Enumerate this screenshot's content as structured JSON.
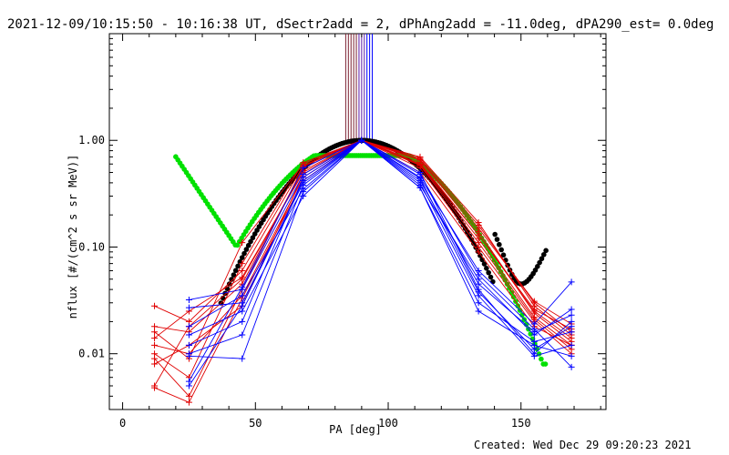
{
  "title": "2021-12-09/10:15:50 - 10:16:38 UT, dSectr2add = 2, dPhAng2add = -11.0deg, dPA290_est=  0.0deg",
  "footer": "Created: Wed Dec 29 09:20:23 2021",
  "chart_data": {
    "type": "scatter",
    "title": "2021-12-09/10:15:50 - 10:16:38 UT, dSectr2add = 2, dPhAng2add = -11.0deg, dPA290_est=  0.0deg",
    "xlabel": "PA [deg]",
    "ylabel": "nflux [#/(cm^2 s sr MeV)]",
    "xlim": [
      -5,
      182
    ],
    "ylim": [
      0.003,
      10
    ],
    "yscale": "log",
    "x_ticks": [
      0,
      50,
      100,
      150
    ],
    "x_tick_labels": [
      "0",
      "50",
      "100",
      "150"
    ],
    "y_ticks": [
      0.01,
      0.1,
      1.0
    ],
    "y_tick_labels": [
      "0.01",
      "0.10",
      "1.00"
    ],
    "vertical_lines": [
      {
        "color": "#7b2030",
        "x": [
          84,
          85,
          86,
          87,
          88
        ]
      },
      {
        "color": "#5a1aa8",
        "x": [
          89,
          90,
          91
        ]
      },
      {
        "color": "#0000ff",
        "x": [
          92,
          93,
          94
        ]
      }
    ],
    "series": [
      {
        "color": "#e00000",
        "marker": "plus",
        "x": [
          12,
          25,
          45,
          68,
          90,
          112,
          134,
          155,
          169
        ],
        "lines": [
          [
            0.028,
            0.02,
            0.06,
            0.58,
            1.0,
            0.68,
            0.16,
            0.03,
            0.016
          ],
          [
            0.018,
            0.016,
            0.045,
            0.55,
            1.0,
            0.62,
            0.13,
            0.025,
            0.014
          ],
          [
            0.016,
            0.009,
            0.11,
            0.6,
            1.0,
            0.66,
            0.15,
            0.031,
            0.019
          ],
          [
            0.014,
            0.025,
            0.052,
            0.5,
            1.0,
            0.59,
            0.12,
            0.022,
            0.012
          ],
          [
            0.012,
            0.01,
            0.035,
            0.45,
            1.0,
            0.55,
            0.1,
            0.02,
            0.01
          ],
          [
            0.01,
            0.006,
            0.07,
            0.62,
            1.0,
            0.7,
            0.17,
            0.028,
            0.015
          ],
          [
            0.009,
            0.004,
            0.04,
            0.57,
            1.0,
            0.65,
            0.14,
            0.024,
            0.013
          ],
          [
            0.008,
            0.012,
            0.028,
            0.48,
            1.0,
            0.58,
            0.11,
            0.021,
            0.011
          ],
          [
            0.005,
            0.018,
            0.05,
            0.52,
            1.0,
            0.6,
            0.13,
            0.026,
            0.017
          ],
          [
            0.0048,
            0.0035,
            0.033,
            0.42,
            1.0,
            0.5,
            0.09,
            0.018,
            0.012
          ]
        ]
      },
      {
        "color": "#0000ff",
        "marker": "plus",
        "x": [
          25,
          45,
          68,
          90,
          112,
          134,
          155,
          169
        ],
        "lines": [
          [
            0.032,
            0.04,
            0.48,
            1.0,
            0.45,
            0.06,
            0.019,
            0.047
          ],
          [
            0.027,
            0.03,
            0.4,
            1.0,
            0.38,
            0.05,
            0.015,
            0.026
          ],
          [
            0.018,
            0.035,
            0.35,
            1.0,
            0.5,
            0.04,
            0.01,
            0.02
          ],
          [
            0.015,
            0.025,
            0.3,
            1.0,
            0.36,
            0.03,
            0.013,
            0.016
          ],
          [
            0.012,
            0.02,
            0.45,
            1.0,
            0.42,
            0.045,
            0.016,
            0.023
          ],
          [
            0.01,
            0.015,
            0.38,
            1.0,
            0.4,
            0.035,
            0.0095,
            0.012
          ],
          [
            0.0095,
            0.009,
            0.33,
            1.0,
            0.36,
            0.025,
            0.012,
            0.0095
          ],
          [
            0.0055,
            0.042,
            0.55,
            1.0,
            0.48,
            0.055,
            0.017,
            0.0075
          ],
          [
            0.005,
            0.028,
            0.42,
            1.0,
            0.44,
            0.038,
            0.011,
            0.018
          ]
        ]
      }
    ],
    "fits": [
      {
        "color": "#000000",
        "shape": "gaussian",
        "xrange": [
          37,
          160
        ],
        "center": 90,
        "sigma": 20,
        "tail": "upturn near 150-160"
      },
      {
        "color": "#00e000",
        "shape": "gaussian-with-low-PA-upturn",
        "xrange": [
          20,
          160
        ],
        "center": 90,
        "sigma": 22,
        "start_value": 0.72
      }
    ]
  }
}
